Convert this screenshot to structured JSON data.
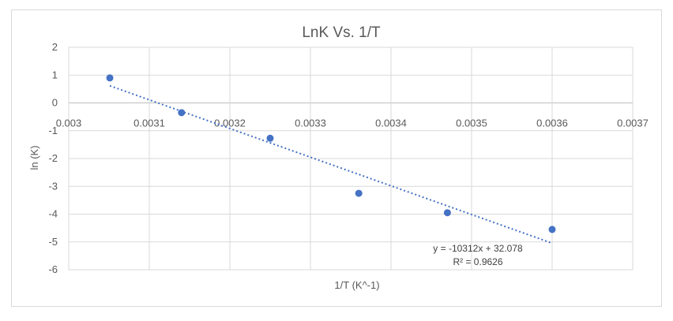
{
  "chart_data": {
    "type": "scatter",
    "title": "LnK Vs. 1/T",
    "xlabel": "1/T (K^-1)",
    "ylabel": "ln (K)",
    "xlim": [
      0.003,
      0.0037
    ],
    "ylim": [
      -6,
      2
    ],
    "x_ticks": [
      "0.003",
      "0.0031",
      "0.0032",
      "0.0033",
      "0.0034",
      "0.0035",
      "0.0036",
      "0.0037"
    ],
    "y_ticks": [
      "2",
      "1",
      "0",
      "-1",
      "-2",
      "-3",
      "-4",
      "-5",
      "-6"
    ],
    "grid": true,
    "legend": "none",
    "marker_color": "#4472C4",
    "trendline_color": "#4472C4",
    "series": [
      {
        "x": [
          0.003051,
          0.00314,
          0.00325,
          0.00336,
          0.00347,
          0.0036
        ],
        "y": [
          0.9,
          -0.35,
          -1.27,
          -3.25,
          -3.95,
          -4.55
        ]
      }
    ],
    "trendline": {
      "type": "linear",
      "slope": -10312,
      "intercept": 32.078,
      "x_range": [
        0.003051,
        0.0036
      ],
      "equation": "y = -10312x + 32.078",
      "r_squared": "R² = 0.9626"
    }
  }
}
